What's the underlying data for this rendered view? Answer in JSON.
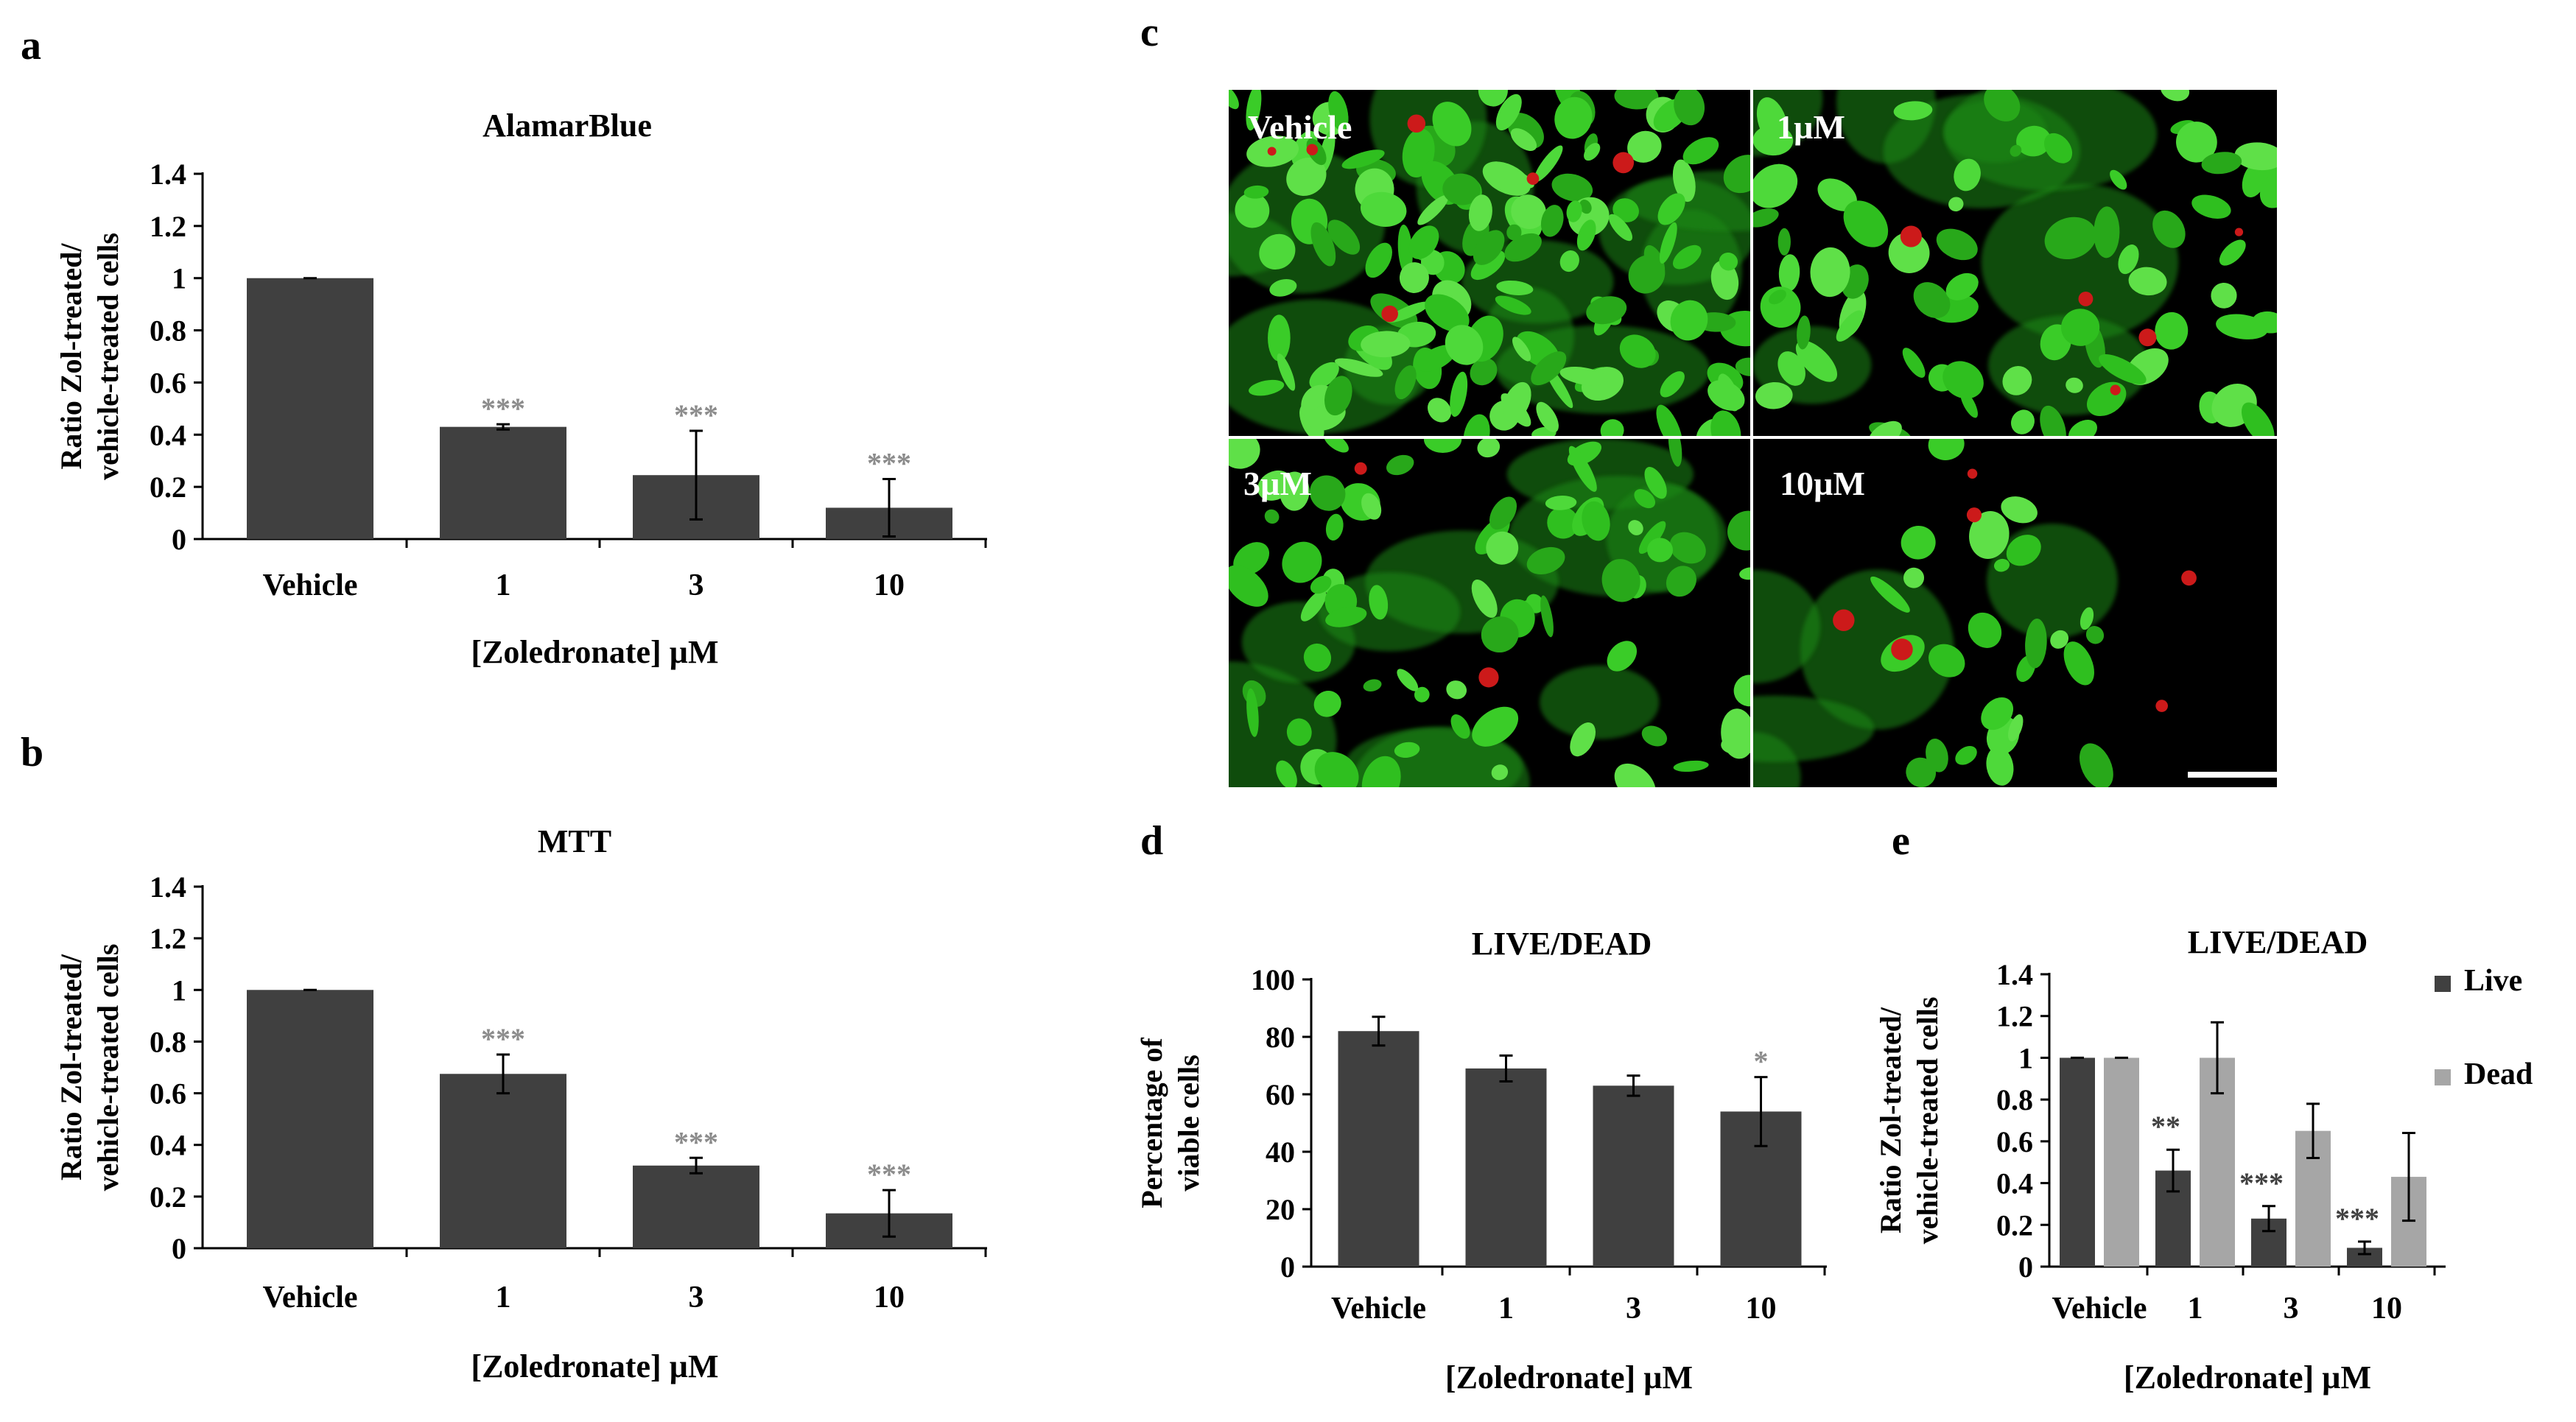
{
  "panels": {
    "a": "a",
    "b": "b",
    "c": "c",
    "d": "d",
    "e": "e"
  },
  "chart_data": [
    {
      "id": "a",
      "type": "bar",
      "title": "AlamarBlue",
      "ylabel_lines": [
        "Ratio Zol-treated/",
        "vehicle-treated  cells"
      ],
      "xlabel": "[Zoledronate]  µM",
      "categories": [
        "Vehicle",
        "1",
        "3",
        "10"
      ],
      "values": [
        1.0,
        0.43,
        0.245,
        0.12
      ],
      "errors": [
        0.0,
        0.01,
        0.17,
        0.11
      ],
      "significance": [
        "",
        "***",
        "***",
        "***"
      ],
      "ylim": [
        0,
        1.4
      ],
      "yticks": [
        "0",
        "0.2",
        "0.4",
        "0.6",
        "0.8",
        "1",
        "1.2",
        "1.4"
      ],
      "bar_color": "#404040",
      "grid": false
    },
    {
      "id": "b",
      "type": "bar",
      "title": "MTT",
      "ylabel_lines": [
        "Ratio Zol-treated/",
        "vehicle-treated  cells"
      ],
      "xlabel": "[Zoledronate]  µM",
      "categories": [
        "Vehicle",
        "1",
        "3",
        "10"
      ],
      "values": [
        1.0,
        0.675,
        0.32,
        0.135
      ],
      "errors": [
        0.0,
        0.075,
        0.03,
        0.09
      ],
      "significance": [
        "",
        "***",
        "***",
        "***"
      ],
      "ylim": [
        0,
        1.4
      ],
      "yticks": [
        "0",
        "0.2",
        "0.4",
        "0.6",
        "0.8",
        "1",
        "1.2",
        "1.4"
      ],
      "bar_color": "#404040",
      "grid": false
    },
    {
      "id": "d",
      "type": "bar",
      "title": "LIVE/DEAD",
      "ylabel_lines": [
        "Percentage of",
        "viable cells"
      ],
      "xlabel": "[Zoledronate]  µM",
      "categories": [
        "Vehicle",
        "1",
        "3",
        "10"
      ],
      "values": [
        82,
        69,
        63,
        54
      ],
      "errors": [
        5,
        4.5,
        3.5,
        12
      ],
      "significance": [
        "",
        "",
        "",
        "*"
      ],
      "ylim": [
        0,
        100
      ],
      "yticks": [
        "0",
        "20",
        "40",
        "60",
        "80",
        "100"
      ],
      "bar_color": "#404040",
      "grid": false
    },
    {
      "id": "e",
      "type": "bar",
      "title": "LIVE/DEAD",
      "ylabel_lines": [
        "Ratio Zol-treated/",
        "vehicle-treated  cells"
      ],
      "xlabel": "[Zoledronate]  µM",
      "categories": [
        "Vehicle",
        "1",
        "3",
        "10"
      ],
      "series": [
        {
          "name": "Live",
          "color": "#404040",
          "values": [
            1.0,
            0.46,
            0.23,
            0.09
          ],
          "errors": [
            0.0,
            0.1,
            0.06,
            0.03
          ],
          "significance": [
            "",
            "**",
            "***",
            "***"
          ]
        },
        {
          "name": "Dead",
          "color": "#a6a6a6",
          "values": [
            1.0,
            1.0,
            0.65,
            0.43
          ],
          "errors": [
            0.0,
            0.17,
            0.13,
            0.21
          ],
          "significance": [
            "",
            "",
            "",
            ""
          ]
        }
      ],
      "ylim": [
        0,
        1.4
      ],
      "yticks": [
        "0",
        "0.2",
        "0.4",
        "0.6",
        "0.8",
        "1",
        "1.2",
        "1.4"
      ],
      "legend_position": "right",
      "grid": false
    }
  ],
  "micrographs": {
    "labels": [
      "Vehicle",
      "1µM",
      "3µM",
      "10µM"
    ],
    "live_color": "#33cc22",
    "dead_color": "#cc1a1a",
    "background": "#000000"
  }
}
